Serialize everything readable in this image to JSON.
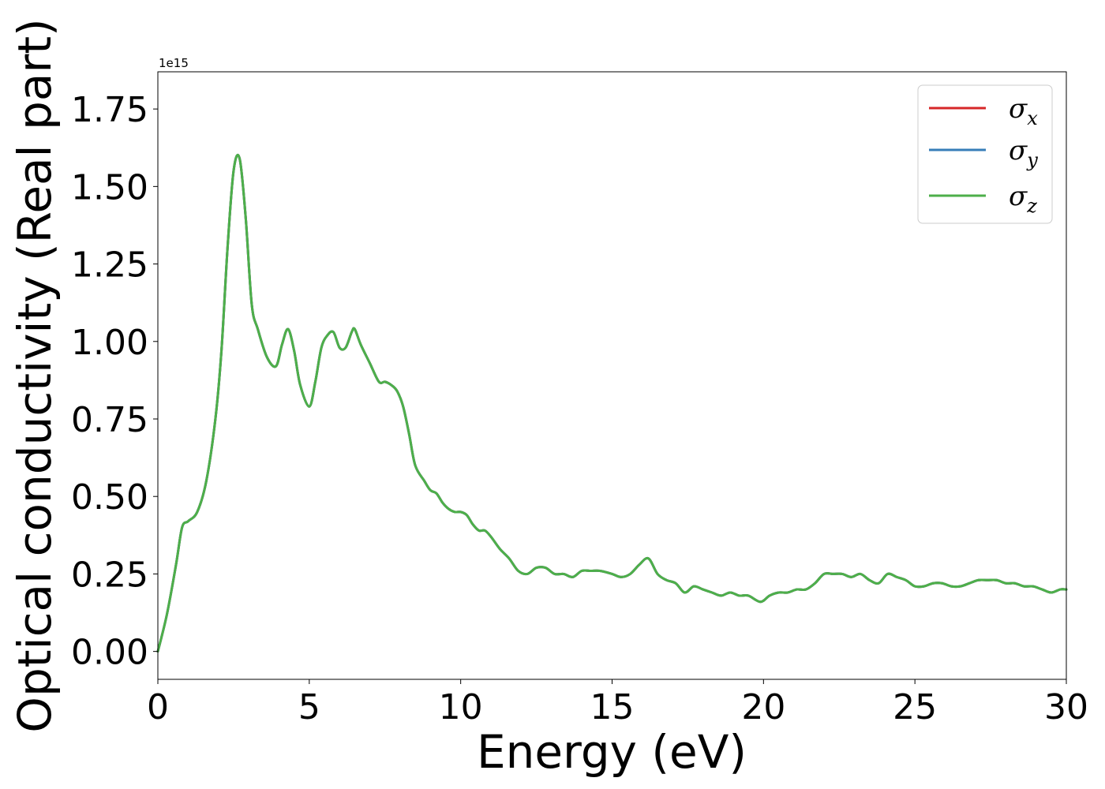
{
  "chart_data": {
    "type": "line",
    "xlabel": "Energy (eV)",
    "ylabel": "Optical conductivity (Real part)",
    "y_offset_label": "1e15",
    "xlim": [
      0,
      30
    ],
    "ylim": [
      -0.09,
      1.87
    ],
    "x_ticks": [
      0,
      5,
      10,
      15,
      20,
      25,
      30
    ],
    "x_tick_labels": [
      "0",
      "5",
      "10",
      "15",
      "20",
      "25",
      "30"
    ],
    "y_ticks": [
      0.0,
      0.25,
      0.5,
      0.75,
      1.0,
      1.25,
      1.5,
      1.75
    ],
    "y_tick_labels": [
      "0.00",
      "0.25",
      "0.50",
      "0.75",
      "1.00",
      "1.25",
      "1.50",
      "1.75"
    ],
    "grid": false,
    "legend_position": "top-right",
    "x": [
      0,
      0.3,
      0.6,
      0.8,
      1.0,
      1.3,
      1.6,
      1.9,
      2.1,
      2.3,
      2.5,
      2.7,
      2.9,
      3.1,
      3.3,
      3.6,
      3.9,
      4.1,
      4.3,
      4.5,
      4.7,
      5.0,
      5.2,
      5.4,
      5.6,
      5.8,
      6.0,
      6.2,
      6.4,
      6.5,
      6.7,
      7.0,
      7.3,
      7.5,
      7.7,
      7.9,
      8.1,
      8.3,
      8.5,
      8.8,
      9.0,
      9.2,
      9.4,
      9.6,
      9.8,
      10.0,
      10.2,
      10.4,
      10.6,
      10.8,
      11.0,
      11.3,
      11.6,
      11.9,
      12.2,
      12.5,
      12.8,
      13.1,
      13.4,
      13.7,
      14.0,
      14.3,
      14.6,
      15.0,
      15.3,
      15.6,
      15.9,
      16.2,
      16.5,
      16.8,
      17.1,
      17.4,
      17.7,
      18.0,
      18.3,
      18.6,
      18.9,
      19.2,
      19.5,
      19.9,
      20.2,
      20.5,
      20.8,
      21.1,
      21.4,
      21.7,
      22.0,
      22.3,
      22.6,
      22.9,
      23.2,
      23.5,
      23.8,
      24.1,
      24.4,
      24.7,
      25.0,
      25.3,
      25.6,
      25.9,
      26.2,
      26.5,
      26.8,
      27.1,
      27.4,
      27.7,
      28.0,
      28.3,
      28.6,
      28.9,
      29.2,
      29.5,
      29.8,
      30.0
    ],
    "series": [
      {
        "name": "σx",
        "legend_symbol": "σ",
        "legend_subscript": "x",
        "color": "#d62728",
        "values": [
          0.0,
          0.12,
          0.28,
          0.4,
          0.42,
          0.45,
          0.55,
          0.75,
          0.97,
          1.3,
          1.55,
          1.59,
          1.4,
          1.12,
          1.04,
          0.95,
          0.92,
          0.99,
          1.04,
          0.97,
          0.86,
          0.79,
          0.87,
          0.98,
          1.02,
          1.03,
          0.98,
          0.98,
          1.03,
          1.04,
          0.99,
          0.93,
          0.87,
          0.87,
          0.86,
          0.84,
          0.79,
          0.7,
          0.6,
          0.55,
          0.52,
          0.51,
          0.48,
          0.46,
          0.45,
          0.45,
          0.44,
          0.41,
          0.39,
          0.39,
          0.37,
          0.33,
          0.3,
          0.26,
          0.25,
          0.27,
          0.27,
          0.25,
          0.25,
          0.24,
          0.26,
          0.26,
          0.26,
          0.25,
          0.24,
          0.25,
          0.28,
          0.3,
          0.25,
          0.23,
          0.22,
          0.19,
          0.21,
          0.2,
          0.19,
          0.18,
          0.19,
          0.18,
          0.18,
          0.16,
          0.18,
          0.19,
          0.19,
          0.2,
          0.2,
          0.22,
          0.25,
          0.25,
          0.25,
          0.24,
          0.25,
          0.23,
          0.22,
          0.25,
          0.24,
          0.23,
          0.21,
          0.21,
          0.22,
          0.22,
          0.21,
          0.21,
          0.22,
          0.23,
          0.23,
          0.23,
          0.22,
          0.22,
          0.21,
          0.21,
          0.2,
          0.19,
          0.2,
          0.2
        ]
      },
      {
        "name": "σy",
        "legend_symbol": "σ",
        "legend_subscript": "y",
        "color": "#377eb8",
        "values": [
          0.0,
          0.12,
          0.28,
          0.4,
          0.42,
          0.45,
          0.55,
          0.75,
          0.97,
          1.3,
          1.55,
          1.59,
          1.4,
          1.12,
          1.04,
          0.95,
          0.92,
          0.99,
          1.04,
          0.97,
          0.86,
          0.79,
          0.87,
          0.98,
          1.02,
          1.03,
          0.98,
          0.98,
          1.03,
          1.04,
          0.99,
          0.93,
          0.87,
          0.87,
          0.86,
          0.84,
          0.79,
          0.7,
          0.6,
          0.55,
          0.52,
          0.51,
          0.48,
          0.46,
          0.45,
          0.45,
          0.44,
          0.41,
          0.39,
          0.39,
          0.37,
          0.33,
          0.3,
          0.26,
          0.25,
          0.27,
          0.27,
          0.25,
          0.25,
          0.24,
          0.26,
          0.26,
          0.26,
          0.25,
          0.24,
          0.25,
          0.28,
          0.3,
          0.25,
          0.23,
          0.22,
          0.19,
          0.21,
          0.2,
          0.19,
          0.18,
          0.19,
          0.18,
          0.18,
          0.16,
          0.18,
          0.19,
          0.19,
          0.2,
          0.2,
          0.22,
          0.25,
          0.25,
          0.25,
          0.24,
          0.25,
          0.23,
          0.22,
          0.25,
          0.24,
          0.23,
          0.21,
          0.21,
          0.22,
          0.22,
          0.21,
          0.21,
          0.22,
          0.23,
          0.23,
          0.23,
          0.22,
          0.22,
          0.21,
          0.21,
          0.2,
          0.19,
          0.2,
          0.2
        ]
      },
      {
        "name": "σz",
        "legend_symbol": "σ",
        "legend_subscript": "z",
        "color": "#4daf4a",
        "values": [
          0.0,
          0.12,
          0.28,
          0.4,
          0.42,
          0.45,
          0.55,
          0.75,
          0.97,
          1.3,
          1.55,
          1.59,
          1.4,
          1.12,
          1.04,
          0.95,
          0.92,
          0.99,
          1.04,
          0.97,
          0.86,
          0.79,
          0.87,
          0.98,
          1.02,
          1.03,
          0.98,
          0.98,
          1.03,
          1.04,
          0.99,
          0.93,
          0.87,
          0.87,
          0.86,
          0.84,
          0.79,
          0.7,
          0.6,
          0.55,
          0.52,
          0.51,
          0.48,
          0.46,
          0.45,
          0.45,
          0.44,
          0.41,
          0.39,
          0.39,
          0.37,
          0.33,
          0.3,
          0.26,
          0.25,
          0.27,
          0.27,
          0.25,
          0.25,
          0.24,
          0.26,
          0.26,
          0.26,
          0.25,
          0.24,
          0.25,
          0.28,
          0.3,
          0.25,
          0.23,
          0.22,
          0.19,
          0.21,
          0.2,
          0.19,
          0.18,
          0.19,
          0.18,
          0.18,
          0.16,
          0.18,
          0.19,
          0.19,
          0.2,
          0.2,
          0.22,
          0.25,
          0.25,
          0.25,
          0.24,
          0.25,
          0.23,
          0.22,
          0.25,
          0.24,
          0.23,
          0.21,
          0.21,
          0.22,
          0.22,
          0.21,
          0.21,
          0.22,
          0.23,
          0.23,
          0.23,
          0.22,
          0.22,
          0.21,
          0.21,
          0.2,
          0.19,
          0.2,
          0.2
        ]
      }
    ]
  }
}
